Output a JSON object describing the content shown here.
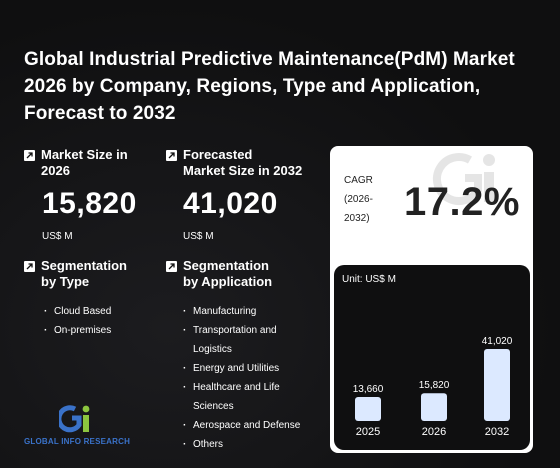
{
  "header": {
    "title": "Global Industrial Predictive Maintenance(PdM) Market 2026 by Company, Regions, Type and Application, Forecast to 2032"
  },
  "market_size": {
    "label": "Market Size in\n2026",
    "value": "15,820",
    "unit": "US$ M"
  },
  "forecast_size": {
    "label": "Forecasted\nMarket Size in 2032",
    "value": "41,020",
    "unit": "US$ M"
  },
  "segmentation_type": {
    "label": "Segmentation\nby Type",
    "items": [
      "Cloud Based",
      "On-premises"
    ]
  },
  "segmentation_application": {
    "label": "Segmentation\nby Application",
    "items": [
      "Manufacturing",
      "Transportation and",
      "Logistics",
      "Energy and Utilities",
      "Healthcare and Life",
      "Sciences",
      "Aerospace and Defense",
      "Others"
    ]
  },
  "cagr": {
    "label": "CAGR\n(2026-\n2032)",
    "value": "17.2%"
  },
  "logo": {
    "brand": "GLOBAL INFO RESEARCH",
    "mark": "Gi"
  },
  "colors": {
    "bar": "#dce9ff",
    "accent_blue": "#3a72c9",
    "accent_green": "#8cc63f"
  },
  "chart_data": {
    "type": "bar",
    "unit_label": "Unit: US$ M",
    "categories": [
      "2025",
      "2026",
      "2032"
    ],
    "values": [
      13660,
      15820,
      41020
    ],
    "data_labels": [
      "13,660",
      "15,820",
      "41,020"
    ]
  }
}
